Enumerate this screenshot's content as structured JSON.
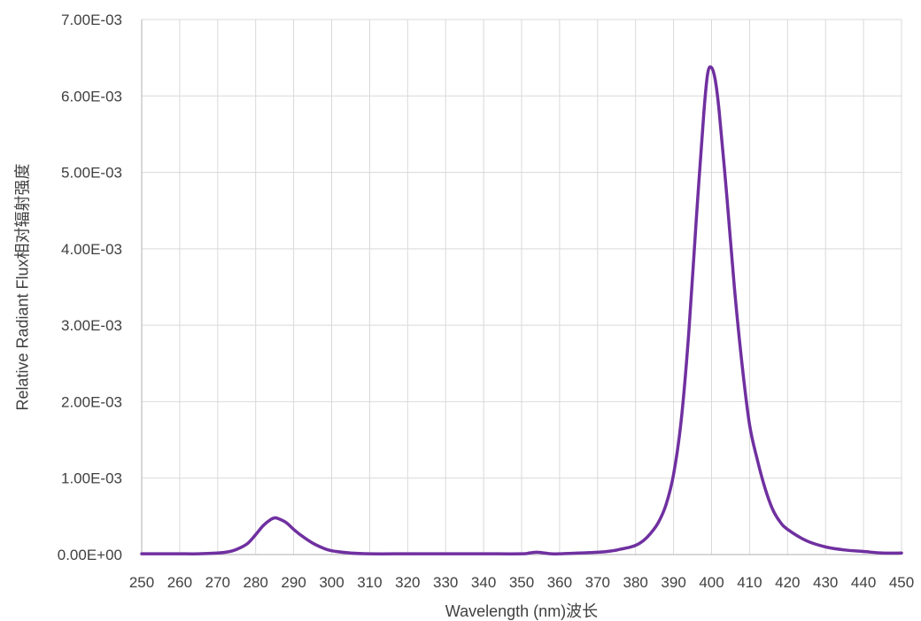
{
  "chart_data": {
    "type": "line",
    "xlabel": "Wavelength (nm)波长",
    "ylabel": "Relative Radiant Flux相对辐射强度",
    "xlim": [
      250,
      450
    ],
    "ylim": [
      0,
      0.007
    ],
    "x_ticks": [
      "250",
      "260",
      "270",
      "280",
      "290",
      "300",
      "310",
      "320",
      "330",
      "340",
      "350",
      "360",
      "370",
      "380",
      "390",
      "400",
      "410",
      "420",
      "430",
      "440",
      "450"
    ],
    "y_ticks": [
      "0.00E+00",
      "1.00E-03",
      "2.00E-03",
      "3.00E-03",
      "4.00E-03",
      "5.00E-03",
      "6.00E-03",
      "7.00E-03"
    ],
    "grid": true,
    "series": [
      {
        "color": "#7030a0",
        "x": [
          250,
          255,
          260,
          265,
          270,
          272,
          274,
          276,
          278,
          280,
          282,
          284,
          285,
          286,
          288,
          290,
          292,
          295,
          298,
          300,
          305,
          310,
          320,
          330,
          340,
          350,
          352,
          354,
          356,
          358,
          360,
          370,
          374,
          376,
          378,
          380,
          382,
          384,
          386,
          388,
          390,
          392,
          394,
          396,
          398,
          399,
          400,
          401,
          402,
          404,
          406,
          408,
          410,
          412,
          414,
          416,
          418,
          420,
          425,
          430,
          435,
          440,
          445,
          450
        ],
        "y": [
          1e-05,
          1e-05,
          1e-05,
          1e-05,
          2e-05,
          3e-05,
          5e-05,
          9e-05,
          0.00015,
          0.00026,
          0.00038,
          0.00046,
          0.00048,
          0.00047,
          0.00042,
          0.00033,
          0.00025,
          0.00015,
          8e-05,
          5e-05,
          2e-05,
          1e-05,
          1e-05,
          1e-05,
          1e-05,
          1e-05,
          2e-05,
          3e-05,
          2e-05,
          1e-05,
          1e-05,
          3e-05,
          5e-05,
          7e-05,
          9e-05,
          0.00012,
          0.00018,
          0.00028,
          0.00042,
          0.00065,
          0.00105,
          0.00175,
          0.0029,
          0.0044,
          0.0058,
          0.0063,
          0.00637,
          0.0062,
          0.0058,
          0.0047,
          0.0035,
          0.0025,
          0.0017,
          0.00125,
          0.00088,
          0.0006,
          0.00043,
          0.00033,
          0.00018,
          0.0001,
          6e-05,
          4e-05,
          2e-05,
          2e-05
        ]
      }
    ]
  }
}
